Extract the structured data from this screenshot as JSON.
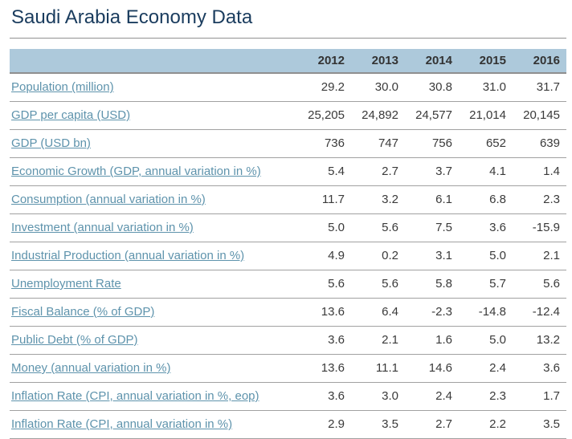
{
  "title": "Saudi Arabia Economy Data",
  "colors": {
    "title": "#1a3c5e",
    "link": "#5e93ac",
    "header_bg": "#adc9db",
    "value_text": "#3a3a3a",
    "row_border": "#a1a1a1"
  },
  "table": {
    "indicator_header": "",
    "years": [
      "2012",
      "2013",
      "2014",
      "2015",
      "2016"
    ],
    "rows": [
      {
        "label": "Population (million)",
        "values": [
          "29.2",
          "30.0",
          "30.8",
          "31.0",
          "31.7"
        ]
      },
      {
        "label": "GDP per capita (USD)",
        "values": [
          "25,205",
          "24,892",
          "24,577",
          "21,014",
          "20,145"
        ]
      },
      {
        "label": "GDP (USD bn)",
        "values": [
          "736",
          "747",
          "756",
          "652",
          "639"
        ]
      },
      {
        "label": "Economic Growth (GDP, annual variation in %)",
        "values": [
          "5.4",
          "2.7",
          "3.7",
          "4.1",
          "1.4"
        ]
      },
      {
        "label": "Consumption (annual variation in %)",
        "values": [
          "11.7",
          "3.2",
          "6.1",
          "6.8",
          "2.3"
        ]
      },
      {
        "label": "Investment (annual variation in %)",
        "values": [
          "5.0",
          "5.6",
          "7.5",
          "3.6",
          "-15.9"
        ]
      },
      {
        "label": "Industrial Production (annual variation in %)",
        "values": [
          "4.9",
          "0.2",
          "3.1",
          "5.0",
          "2.1"
        ]
      },
      {
        "label": "Unemployment Rate",
        "values": [
          "5.6",
          "5.6",
          "5.8",
          "5.7",
          "5.6"
        ]
      },
      {
        "label": "Fiscal Balance (% of GDP)",
        "values": [
          "13.6",
          "6.4",
          "-2.3",
          "-14.8",
          "-12.4"
        ]
      },
      {
        "label": "Public Debt (% of GDP)",
        "values": [
          "3.6",
          "2.1",
          "1.6",
          "5.0",
          "13.2"
        ]
      },
      {
        "label": "Money (annual variation in %)",
        "values": [
          "13.6",
          "11.1",
          "14.6",
          "2.4",
          "3.6"
        ]
      },
      {
        "label": "Inflation Rate (CPI, annual variation in %, eop)",
        "values": [
          "3.6",
          "3.0",
          "2.4",
          "2.3",
          "1.7"
        ]
      },
      {
        "label": "Inflation Rate (CPI, annual variation in %)",
        "values": [
          "2.9",
          "3.5",
          "2.7",
          "2.2",
          "3.5"
        ]
      }
    ]
  },
  "chart_data": {
    "type": "table",
    "title": "Saudi Arabia Economy Data",
    "columns": [
      "2012",
      "2013",
      "2014",
      "2015",
      "2016"
    ],
    "series": [
      {
        "name": "Population (million)",
        "values": [
          29.2,
          30.0,
          30.8,
          31.0,
          31.7
        ]
      },
      {
        "name": "GDP per capita (USD)",
        "values": [
          25205,
          24892,
          24577,
          21014,
          20145
        ]
      },
      {
        "name": "GDP (USD bn)",
        "values": [
          736,
          747,
          756,
          652,
          639
        ]
      },
      {
        "name": "Economic Growth (GDP, annual variation in %)",
        "values": [
          5.4,
          2.7,
          3.7,
          4.1,
          1.4
        ]
      },
      {
        "name": "Consumption (annual variation in %)",
        "values": [
          11.7,
          3.2,
          6.1,
          6.8,
          2.3
        ]
      },
      {
        "name": "Investment (annual variation in %)",
        "values": [
          5.0,
          5.6,
          7.5,
          3.6,
          -15.9
        ]
      },
      {
        "name": "Industrial Production (annual variation in %)",
        "values": [
          4.9,
          0.2,
          3.1,
          5.0,
          2.1
        ]
      },
      {
        "name": "Unemployment Rate",
        "values": [
          5.6,
          5.6,
          5.8,
          5.7,
          5.6
        ]
      },
      {
        "name": "Fiscal Balance (% of GDP)",
        "values": [
          13.6,
          6.4,
          -2.3,
          -14.8,
          -12.4
        ]
      },
      {
        "name": "Public Debt (% of GDP)",
        "values": [
          3.6,
          2.1,
          1.6,
          5.0,
          13.2
        ]
      },
      {
        "name": "Money (annual variation in %)",
        "values": [
          13.6,
          11.1,
          14.6,
          2.4,
          3.6
        ]
      },
      {
        "name": "Inflation Rate (CPI, annual variation in %, eop)",
        "values": [
          3.6,
          3.0,
          2.4,
          2.3,
          1.7
        ]
      },
      {
        "name": "Inflation Rate (CPI, annual variation in %)",
        "values": [
          2.9,
          3.5,
          2.7,
          2.2,
          3.5
        ]
      }
    ]
  }
}
